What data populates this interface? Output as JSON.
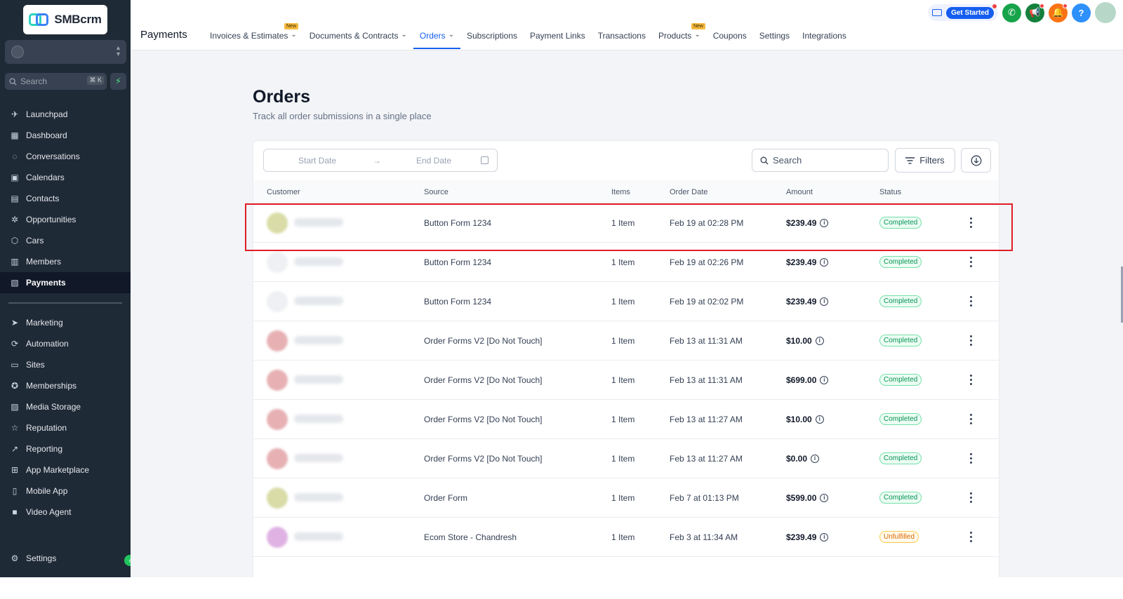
{
  "app": {
    "logo_text": "SMBcrm"
  },
  "sidebar": {
    "search_placeholder": "Search",
    "search_shortcut": "⌘ K",
    "top_items": [
      {
        "label": "Launchpad",
        "icon": "rocket-icon"
      },
      {
        "label": "Dashboard",
        "icon": "grid-icon"
      },
      {
        "label": "Conversations",
        "icon": "chat-icon"
      },
      {
        "label": "Calendars",
        "icon": "calendar-icon"
      },
      {
        "label": "Contacts",
        "icon": "contacts-icon"
      },
      {
        "label": "Opportunities",
        "icon": "opportunities-icon"
      },
      {
        "label": "Cars",
        "icon": "box-icon"
      },
      {
        "label": "Members",
        "icon": "members-icon"
      },
      {
        "label": "Payments",
        "icon": "receipt-icon"
      }
    ],
    "bottom_items": [
      {
        "label": "Marketing",
        "icon": "send-icon"
      },
      {
        "label": "Automation",
        "icon": "automation-icon"
      },
      {
        "label": "Sites",
        "icon": "sites-icon"
      },
      {
        "label": "Memberships",
        "icon": "badge-icon"
      },
      {
        "label": "Media Storage",
        "icon": "image-icon"
      },
      {
        "label": "Reputation",
        "icon": "star-icon"
      },
      {
        "label": "Reporting",
        "icon": "trend-icon"
      },
      {
        "label": "App Marketplace",
        "icon": "apps-icon"
      },
      {
        "label": "Mobile App",
        "icon": "phone-icon"
      },
      {
        "label": "Video Agent",
        "icon": "video-icon"
      }
    ],
    "settings_label": "Settings"
  },
  "topbar": {
    "section_title": "Payments",
    "tabs": [
      {
        "label": "Invoices & Estimates",
        "dropdown": true,
        "badge": "New"
      },
      {
        "label": "Documents & Contracts",
        "dropdown": true
      },
      {
        "label": "Orders",
        "dropdown": true,
        "active": true
      },
      {
        "label": "Subscriptions"
      },
      {
        "label": "Payment Links"
      },
      {
        "label": "Transactions"
      },
      {
        "label": "Products",
        "dropdown": true,
        "badge": "New"
      },
      {
        "label": "Coupons"
      },
      {
        "label": "Settings"
      },
      {
        "label": "Integrations"
      }
    ],
    "get_started_label": "Get Started",
    "help_label": "?"
  },
  "page": {
    "title": "Orders",
    "subtitle": "Track all order submissions in a single place"
  },
  "toolbar": {
    "start_date_placeholder": "Start Date",
    "end_date_placeholder": "End Date",
    "search_placeholder": "Search",
    "filters_label": "Filters"
  },
  "table": {
    "columns": [
      "Customer",
      "Source",
      "Items",
      "Order Date",
      "Amount",
      "Status"
    ],
    "rows": [
      {
        "source": "Button Form 1234",
        "items": "1 Item",
        "date": "Feb 19 at 02:28 PM",
        "amount": "$239.49",
        "status": "Completed",
        "avatar_color": "#d9dca6"
      },
      {
        "source": "Button Form 1234",
        "items": "1 Item",
        "date": "Feb 19 at 02:26 PM",
        "amount": "$239.49",
        "status": "Completed",
        "avatar_color": "#eef0f3"
      },
      {
        "source": "Button Form 1234",
        "items": "1 Item",
        "date": "Feb 19 at 02:02 PM",
        "amount": "$239.49",
        "status": "Completed",
        "avatar_color": "#eef0f3"
      },
      {
        "source": "Order Forms V2 [Do Not Touch]",
        "items": "1 Item",
        "date": "Feb 13 at 11:31 AM",
        "amount": "$10.00",
        "status": "Completed",
        "avatar_color": "#e7b1b4"
      },
      {
        "source": "Order Forms V2 [Do Not Touch]",
        "items": "1 Item",
        "date": "Feb 13 at 11:31 AM",
        "amount": "$699.00",
        "status": "Completed",
        "avatar_color": "#e7b1b4"
      },
      {
        "source": "Order Forms V2 [Do Not Touch]",
        "items": "1 Item",
        "date": "Feb 13 at 11:27 AM",
        "amount": "$10.00",
        "status": "Completed",
        "avatar_color": "#e7b1b4"
      },
      {
        "source": "Order Forms V2 [Do Not Touch]",
        "items": "1 Item",
        "date": "Feb 13 at 11:27 AM",
        "amount": "$0.00",
        "status": "Completed",
        "avatar_color": "#e7b1b4"
      },
      {
        "source": "Order Form",
        "items": "1 Item",
        "date": "Feb 7 at 01:13 PM",
        "amount": "$599.00",
        "status": "Completed",
        "avatar_color": "#d9dca6"
      },
      {
        "source": "Ecom Store - Chandresh",
        "items": "1 Item",
        "date": "Feb 3 at 11:34 AM",
        "amount": "$239.49",
        "status": "Unfulfilled",
        "avatar_color": "#dfb2e3"
      }
    ]
  },
  "colors": {
    "sidebar_bg": "#1f2a37",
    "accent": "#155eef",
    "phone_green": "#16a34a",
    "megaphone_green": "#15803d",
    "bell_orange": "#f97316",
    "help_blue": "#2e90fa",
    "highlight_red": "#e11d26"
  }
}
